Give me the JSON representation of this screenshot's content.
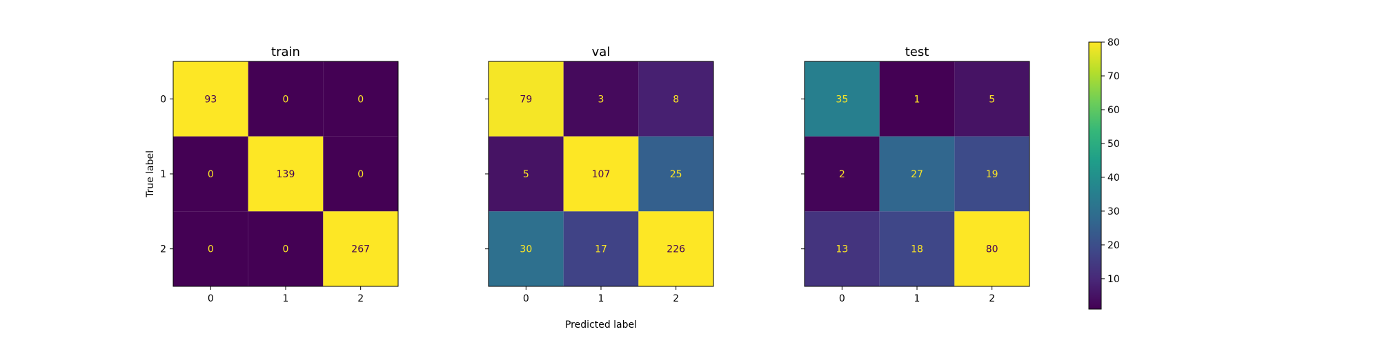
{
  "chart_data": [
    {
      "type": "heatmap",
      "title": "train",
      "xlabel": "",
      "ylabel": "True label",
      "x_categories": [
        "0",
        "1",
        "2"
      ],
      "y_categories": [
        "0",
        "1",
        "2"
      ],
      "values": [
        [
          93,
          0,
          0
        ],
        [
          0,
          139,
          0
        ],
        [
          0,
          0,
          267
        ]
      ]
    },
    {
      "type": "heatmap",
      "title": "val",
      "xlabel": "Predicted label",
      "ylabel": "",
      "x_categories": [
        "0",
        "1",
        "2"
      ],
      "y_categories": [
        "0",
        "1",
        "2"
      ],
      "values": [
        [
          79,
          3,
          8
        ],
        [
          5,
          107,
          25
        ],
        [
          30,
          17,
          226
        ]
      ]
    },
    {
      "type": "heatmap",
      "title": "test",
      "xlabel": "",
      "ylabel": "",
      "x_categories": [
        "0",
        "1",
        "2"
      ],
      "y_categories": [
        "0",
        "1",
        "2"
      ],
      "values": [
        [
          35,
          1,
          5
        ],
        [
          2,
          27,
          19
        ],
        [
          13,
          18,
          80
        ]
      ]
    }
  ],
  "colorbar": {
    "colormap": "viridis",
    "range": [
      1,
      80
    ],
    "ticks": [
      "10",
      "20",
      "30",
      "40",
      "50",
      "60",
      "70",
      "80"
    ],
    "tick_values": [
      10,
      20,
      30,
      40,
      50,
      60,
      70,
      80
    ]
  }
}
